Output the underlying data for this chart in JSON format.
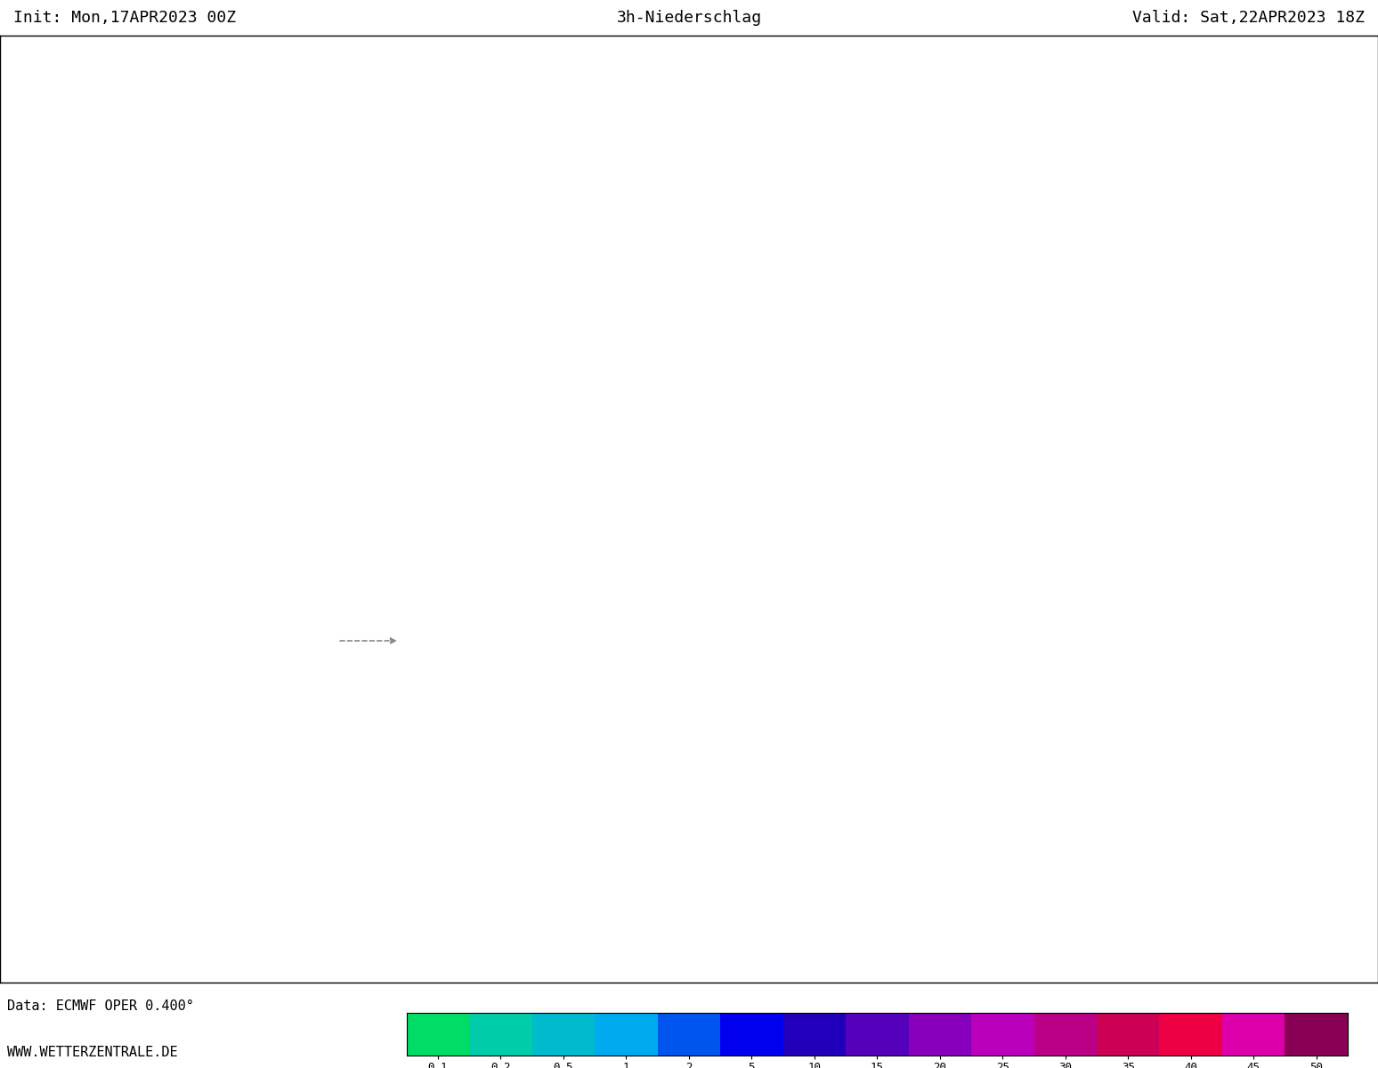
{
  "title_center": "3h-Niederschlag",
  "title_left": "Init: Mon,17APR2023 00Z",
  "title_right": "Valid: Sat,22APR2023 18Z",
  "footer_left_line1": "Data: ECMWF OPER 0.400°",
  "footer_left_line2": "WWW.WETTERZENTRALE.DE",
  "colorbar_levels": [
    "0.1",
    "0.2",
    "0.5",
    "1",
    "2",
    "5",
    "10",
    "15",
    "20",
    "25",
    "30",
    "35",
    "40",
    "45",
    "50"
  ],
  "colorbar_colors": [
    "#00dd66",
    "#00ccaa",
    "#00bbcc",
    "#00aaee",
    "#0055ee",
    "#0000ee",
    "#2200bb",
    "#5500bb",
    "#8800bb",
    "#bb00bb",
    "#bb0088",
    "#cc0055",
    "#ee0044",
    "#dd00aa",
    "#880055"
  ],
  "bg_color": "#ffffff",
  "map_bg": "#ffffff",
  "border_color": "#000000",
  "text_color": "#000000",
  "title_fontsize": 13,
  "footer_fontsize": 11
}
